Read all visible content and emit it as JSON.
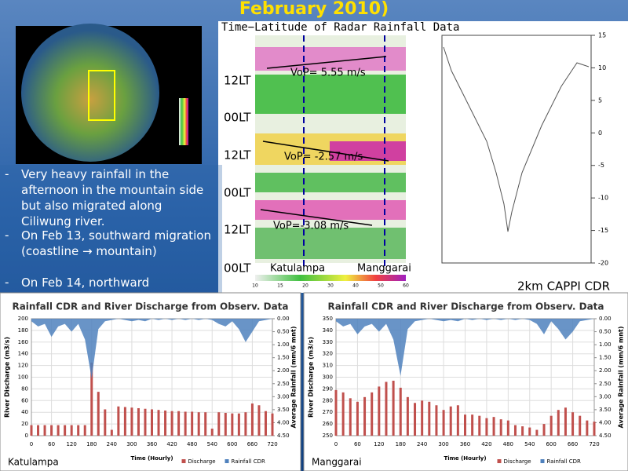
{
  "slide": {
    "title": "February 2010)",
    "bullets": [
      " Very heavy rainfall in the afternoon in the mountain side but also migrated along Ciliwung river.",
      " On Feb 13, southward migration (coastline → mountain)",
      " On Feb 14, northward"
    ],
    "hovmoller": {
      "title": "Time−Latitude of Radar Rainfall Data",
      "time_labels": [
        "12LT",
        "00LT",
        "12LT",
        "00LT",
        "12LT",
        "00LT"
      ],
      "speeds": [
        "VoP= 5.55 m/s",
        "VoP= -2.57 m/s",
        "VoP=-3.08 m/s"
      ],
      "sites": [
        "Katulampa",
        "Manggarai"
      ],
      "colorbar_ticks": [
        10,
        15,
        20,
        30,
        40,
        50,
        60
      ]
    },
    "profile": {
      "yticks": [
        15,
        10,
        5,
        0,
        -5,
        -10,
        -15,
        -20
      ]
    },
    "caption": "2km CAPPI CDR"
  },
  "chart_data": [
    {
      "type": "bar-area",
      "title": "Rainfall CDR and River Discharge from Observ. Data",
      "site": "Katulampa",
      "x_label": "Time (Hourly)",
      "y_label": "River Discharge (m3/s)",
      "y2_label": "Average Rainfall (mm/6 mnt)",
      "y2_inverted": true,
      "x": [
        0,
        20,
        40,
        60,
        80,
        100,
        120,
        140,
        160,
        180,
        200,
        220,
        240,
        260,
        280,
        300,
        320,
        340,
        360,
        380,
        400,
        420,
        440,
        460,
        480,
        500,
        520,
        540,
        560,
        580,
        600,
        620,
        640,
        660,
        680,
        700,
        720
      ],
      "series": [
        {
          "name": "Discharge",
          "color": "#c0504d",
          "values": [
            18,
            18,
            18,
            18,
            18,
            18,
            18,
            18,
            18,
            125,
            75,
            45,
            10,
            50,
            49,
            48,
            47,
            46,
            45,
            44,
            43,
            42,
            42,
            41,
            41,
            40,
            40,
            12,
            40,
            39,
            38,
            38,
            40,
            55,
            52,
            42,
            38
          ]
        },
        {
          "name": "Rainfall CDR",
          "color": "#4f81bd",
          "axis": "y2",
          "values": [
            0.1,
            0.3,
            0.2,
            0.7,
            0.3,
            0.2,
            0.5,
            0.2,
            0.8,
            2.3,
            0.4,
            0.1,
            0.05,
            0,
            0.05,
            0.1,
            0.05,
            0.1,
            0,
            0.05,
            0,
            0.05,
            0,
            0.05,
            0,
            0.05,
            0,
            0.05,
            0.2,
            0.3,
            0.1,
            0.4,
            0.9,
            0.5,
            0.1,
            0.05,
            0
          ]
        }
      ],
      "xlim": [
        0,
        720
      ],
      "xticks": [
        0,
        60,
        120,
        180,
        240,
        300,
        360,
        420,
        480,
        540,
        600,
        660,
        720
      ],
      "ylim": [
        0,
        200
      ],
      "yticks": [
        0,
        20,
        40,
        60,
        80,
        100,
        120,
        140,
        160,
        180,
        200
      ],
      "y2lim": [
        0,
        4.5
      ],
      "y2ticks": [
        {
          "value": 0,
          "label": "0.00"
        },
        {
          "value": 0.5,
          "label": "0.50"
        },
        {
          "value": 1,
          "label": "1.00"
        },
        {
          "value": 1.5,
          "label": "1.50"
        },
        {
          "value": 2,
          "label": "2.00"
        },
        {
          "value": 2.5,
          "label": "2.50"
        },
        {
          "value": 3,
          "label": "3.00"
        },
        {
          "value": 3.5,
          "label": "3.50"
        },
        {
          "value": 4,
          "label": "4.00"
        },
        {
          "value": 4.5,
          "label": "4.50"
        }
      ],
      "grid": true
    },
    {
      "type": "bar-area",
      "title": "Rainfall CDR and River Discharge from Observ. Data",
      "site": "Manggarai",
      "x_label": "Time (Hourly)",
      "y_label": "River Discharge (m3/s)",
      "y2_label": "Average Rainfall (mm/6 mnt)",
      "y2_inverted": true,
      "x": [
        0,
        20,
        40,
        60,
        80,
        100,
        120,
        140,
        160,
        180,
        200,
        220,
        240,
        260,
        280,
        300,
        320,
        340,
        360,
        380,
        400,
        420,
        440,
        460,
        480,
        500,
        520,
        540,
        560,
        580,
        600,
        620,
        640,
        660,
        680,
        700,
        720
      ],
      "series": [
        {
          "name": "Discharge",
          "color": "#c0504d",
          "values": [
            289,
            287,
            282,
            279,
            283,
            287,
            292,
            296,
            297,
            291,
            283,
            278,
            280,
            279,
            276,
            272,
            275,
            276,
            268,
            268,
            267,
            265,
            266,
            264,
            263,
            259,
            258,
            257,
            255,
            260,
            267,
            272,
            274,
            270,
            267,
            263,
            262
          ]
        },
        {
          "name": "Rainfall CDR",
          "color": "#4f81bd",
          "axis": "y2",
          "values": [
            0.1,
            0.3,
            0.2,
            0.6,
            0.3,
            0.2,
            0.5,
            0.2,
            0.8,
            2.2,
            0.4,
            0.1,
            0.05,
            0,
            0.05,
            0.1,
            0.05,
            0.1,
            0,
            0.05,
            0,
            0.05,
            0,
            0.05,
            0,
            0.05,
            0,
            0.05,
            0.2,
            0.6,
            0.1,
            0.4,
            0.8,
            0.5,
            0.1,
            0.05,
            0
          ]
        }
      ],
      "xlim": [
        0,
        720
      ],
      "xticks": [
        0,
        60,
        120,
        180,
        240,
        300,
        360,
        420,
        480,
        540,
        600,
        660,
        720
      ],
      "ylim": [
        250,
        350
      ],
      "yticks": [
        250,
        260,
        270,
        280,
        290,
        300,
        310,
        320,
        330,
        340,
        350
      ],
      "y2lim": [
        0,
        4.5
      ],
      "y2ticks": [
        {
          "value": 0,
          "label": "0.00"
        },
        {
          "value": 0.5,
          "label": "0.50"
        },
        {
          "value": 1,
          "label": "1.00"
        },
        {
          "value": 1.5,
          "label": "1.50"
        },
        {
          "value": 2,
          "label": "2.00"
        },
        {
          "value": 2.5,
          "label": "2.50"
        },
        {
          "value": 3,
          "label": "3.00"
        },
        {
          "value": 3.5,
          "label": "3.50"
        },
        {
          "value": 4,
          "label": "4.00"
        },
        {
          "value": 4.5,
          "label": "4.50"
        }
      ],
      "grid": true
    }
  ]
}
